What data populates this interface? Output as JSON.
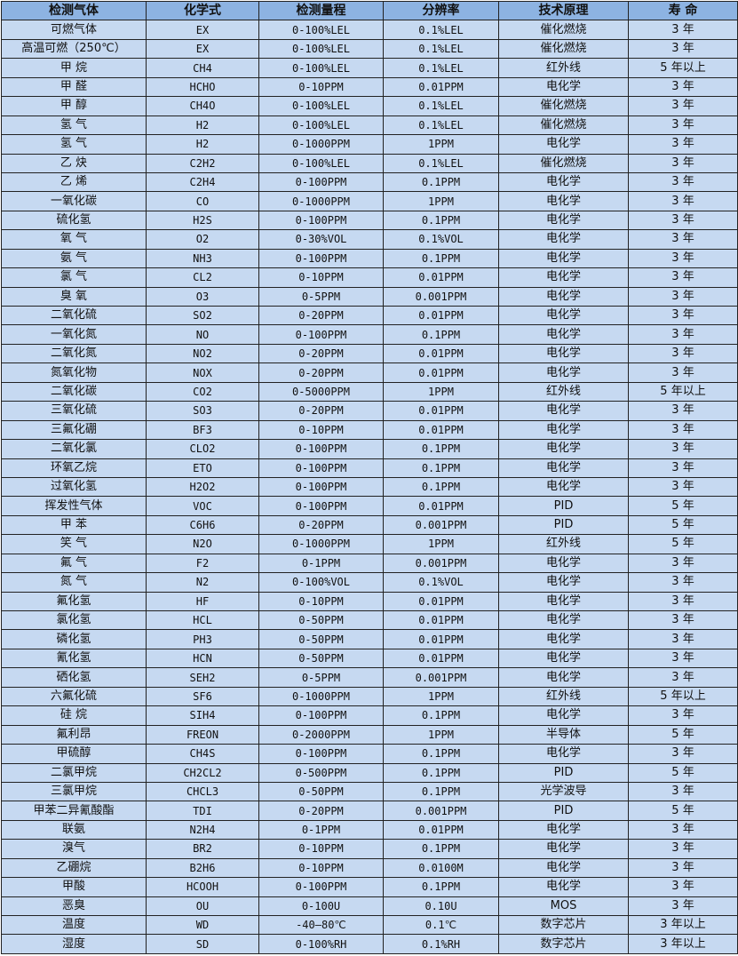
{
  "colors": {
    "header_bg": "#8db3e2",
    "row_bg": "#c6d9f1",
    "border": "#222222"
  },
  "headers": [
    "检测气体",
    "化学式",
    "检测量程",
    "分辨率",
    "技术原理",
    "寿 命"
  ],
  "rows": [
    [
      "可燃气体",
      "EX",
      "0-100%LEL",
      "0.1%LEL",
      "催化燃烧",
      "3 年"
    ],
    [
      "高温可燃（250℃）",
      "EX",
      "0-100%LEL",
      "0.1%LEL",
      "催化燃烧",
      "3 年"
    ],
    [
      "甲 烷",
      "CH4",
      "0-100%LEL",
      "0.1%LEL",
      "红外线",
      "5 年以上"
    ],
    [
      "甲 醛",
      "HCHO",
      "0-10PPM",
      "0.01PPM",
      "电化学",
      "3 年"
    ],
    [
      "甲 醇",
      "CH4O",
      "0-100%LEL",
      "0.1%LEL",
      "催化燃烧",
      "3 年"
    ],
    [
      "氢 气",
      "H2",
      "0-100%LEL",
      "0.1%LEL",
      "催化燃烧",
      "3 年"
    ],
    [
      "氢 气",
      "H2",
      "0-1000PPM",
      "1PPM",
      "电化学",
      "3 年"
    ],
    [
      "乙 炔",
      "C2H2",
      "0-100%LEL",
      "0.1%LEL",
      "催化燃烧",
      "3 年"
    ],
    [
      "乙 烯",
      "C2H4",
      "0-100PPM",
      "0.1PPM",
      "电化学",
      "3 年"
    ],
    [
      "一氧化碳",
      "CO",
      "0-1000PPM",
      "1PPM",
      "电化学",
      "3 年"
    ],
    [
      "硫化氢",
      "H2S",
      "0-100PPM",
      "0.1PPM",
      "电化学",
      "3 年"
    ],
    [
      "氧 气",
      "O2",
      "0-30%VOL",
      "0.1%VOL",
      "电化学",
      "3 年"
    ],
    [
      "氨 气",
      "NH3",
      "0-100PPM",
      "0.1PPM",
      "电化学",
      "3 年"
    ],
    [
      "氯 气",
      "CL2",
      "0-10PPM",
      "0.01PPM",
      "电化学",
      "3 年"
    ],
    [
      "臭 氧",
      "O3",
      "0-5PPM",
      "0.001PPM",
      "电化学",
      "3 年"
    ],
    [
      "二氧化硫",
      "SO2",
      "0-20PPM",
      "0.01PPM",
      "电化学",
      "3 年"
    ],
    [
      "一氧化氮",
      "NO",
      "0-100PPM",
      "0.1PPM",
      "电化学",
      "3 年"
    ],
    [
      "二氧化氮",
      "NO2",
      "0-20PPM",
      "0.01PPM",
      "电化学",
      "3 年"
    ],
    [
      "氮氧化物",
      "NOX",
      "0-20PPM",
      "0.01PPM",
      "电化学",
      "3 年"
    ],
    [
      "二氧化碳",
      "CO2",
      "0-5000PPM",
      "1PPM",
      "红外线",
      "5 年以上"
    ],
    [
      "三氧化硫",
      "SO3",
      "0-20PPM",
      "0.01PPM",
      "电化学",
      "3 年"
    ],
    [
      "三氟化硼",
      "BF3",
      "0-10PPM",
      "0.01PPM",
      "电化学",
      "3 年"
    ],
    [
      "二氧化氯",
      "CLO2",
      "0-100PPM",
      "0.1PPM",
      "电化学",
      "3 年"
    ],
    [
      "环氧乙烷",
      "ETO",
      "0-100PPM",
      "0.1PPM",
      "电化学",
      "3 年"
    ],
    [
      "过氧化氢",
      "H2O2",
      "0-100PPM",
      "0.1PPM",
      "电化学",
      "3 年"
    ],
    [
      "挥发性气体",
      "VOC",
      "0-100PPM",
      "0.01PPM",
      "PID",
      "5 年"
    ],
    [
      "甲 苯",
      "C6H6",
      "0-20PPM",
      "0.001PPM",
      "PID",
      "5 年"
    ],
    [
      "笑 气",
      "N2O",
      "0-1000PPM",
      "1PPM",
      "红外线",
      "5 年"
    ],
    [
      "氟 气",
      "F2",
      "0-1PPM",
      "0.001PPM",
      "电化学",
      "3 年"
    ],
    [
      "氮 气",
      "N2",
      "0-100%VOL",
      "0.1%VOL",
      "电化学",
      "3 年"
    ],
    [
      "氟化氢",
      "HF",
      "0-10PPM",
      "0.01PPM",
      "电化学",
      "3 年"
    ],
    [
      "氯化氢",
      "HCL",
      "0-50PPM",
      "0.01PPM",
      "电化学",
      "3 年"
    ],
    [
      "磷化氢",
      "PH3",
      "0-50PPM",
      "0.01PPM",
      "电化学",
      "3 年"
    ],
    [
      "氰化氢",
      "HCN",
      "0-50PPM",
      "0.01PPM",
      "电化学",
      "3 年"
    ],
    [
      "硒化氢",
      "SEH2",
      "0-5PPM",
      "0.001PPM",
      "电化学",
      "3 年"
    ],
    [
      "六氟化硫",
      "SF6",
      "0-1000PPM",
      "1PPM",
      "红外线",
      "5 年以上"
    ],
    [
      "硅 烷",
      "SIH4",
      "0-100PPM",
      "0.1PPM",
      "电化学",
      "3 年"
    ],
    [
      "氟利昂",
      "FREON",
      "0-2000PPM",
      "1PPM",
      "半导体",
      "5 年"
    ],
    [
      "甲硫醇",
      "CH4S",
      "0-100PPM",
      "0.1PPM",
      "电化学",
      "3 年"
    ],
    [
      "二氯甲烷",
      "CH2CL2",
      "0-500PPM",
      "0.1PPM",
      "PID",
      "5 年"
    ],
    [
      "三氯甲烷",
      "CHCL3",
      "0-50PPM",
      "0.1PPM",
      "光学波导",
      "3 年"
    ],
    [
      "甲苯二异氰酸酯",
      "TDI",
      "0-20PPM",
      "0.001PPM",
      "PID",
      "5 年"
    ],
    [
      "联氨",
      "N2H4",
      "0-1PPM",
      "0.01PPM",
      "电化学",
      "3 年"
    ],
    [
      "溴气",
      "BR2",
      "0-10PPM",
      "0.1PPM",
      "电化学",
      "3 年"
    ],
    [
      "乙硼烷",
      "B2H6",
      "0-10PPM",
      "0.0100M",
      "电化学",
      "3 年"
    ],
    [
      "甲酸",
      "HCOOH",
      "0-100PPM",
      "0.1PPM",
      "电化学",
      "3 年"
    ],
    [
      "恶臭",
      "OU",
      "0-100U",
      "0.10U",
      "MOS",
      "3 年"
    ],
    [
      "温度",
      "WD",
      "-40—80℃",
      "0.1℃",
      "数字芯片",
      "3 年以上"
    ],
    [
      "湿度",
      "SD",
      "0-100%RH",
      "0.1%RH",
      "数字芯片",
      "3 年以上"
    ]
  ]
}
